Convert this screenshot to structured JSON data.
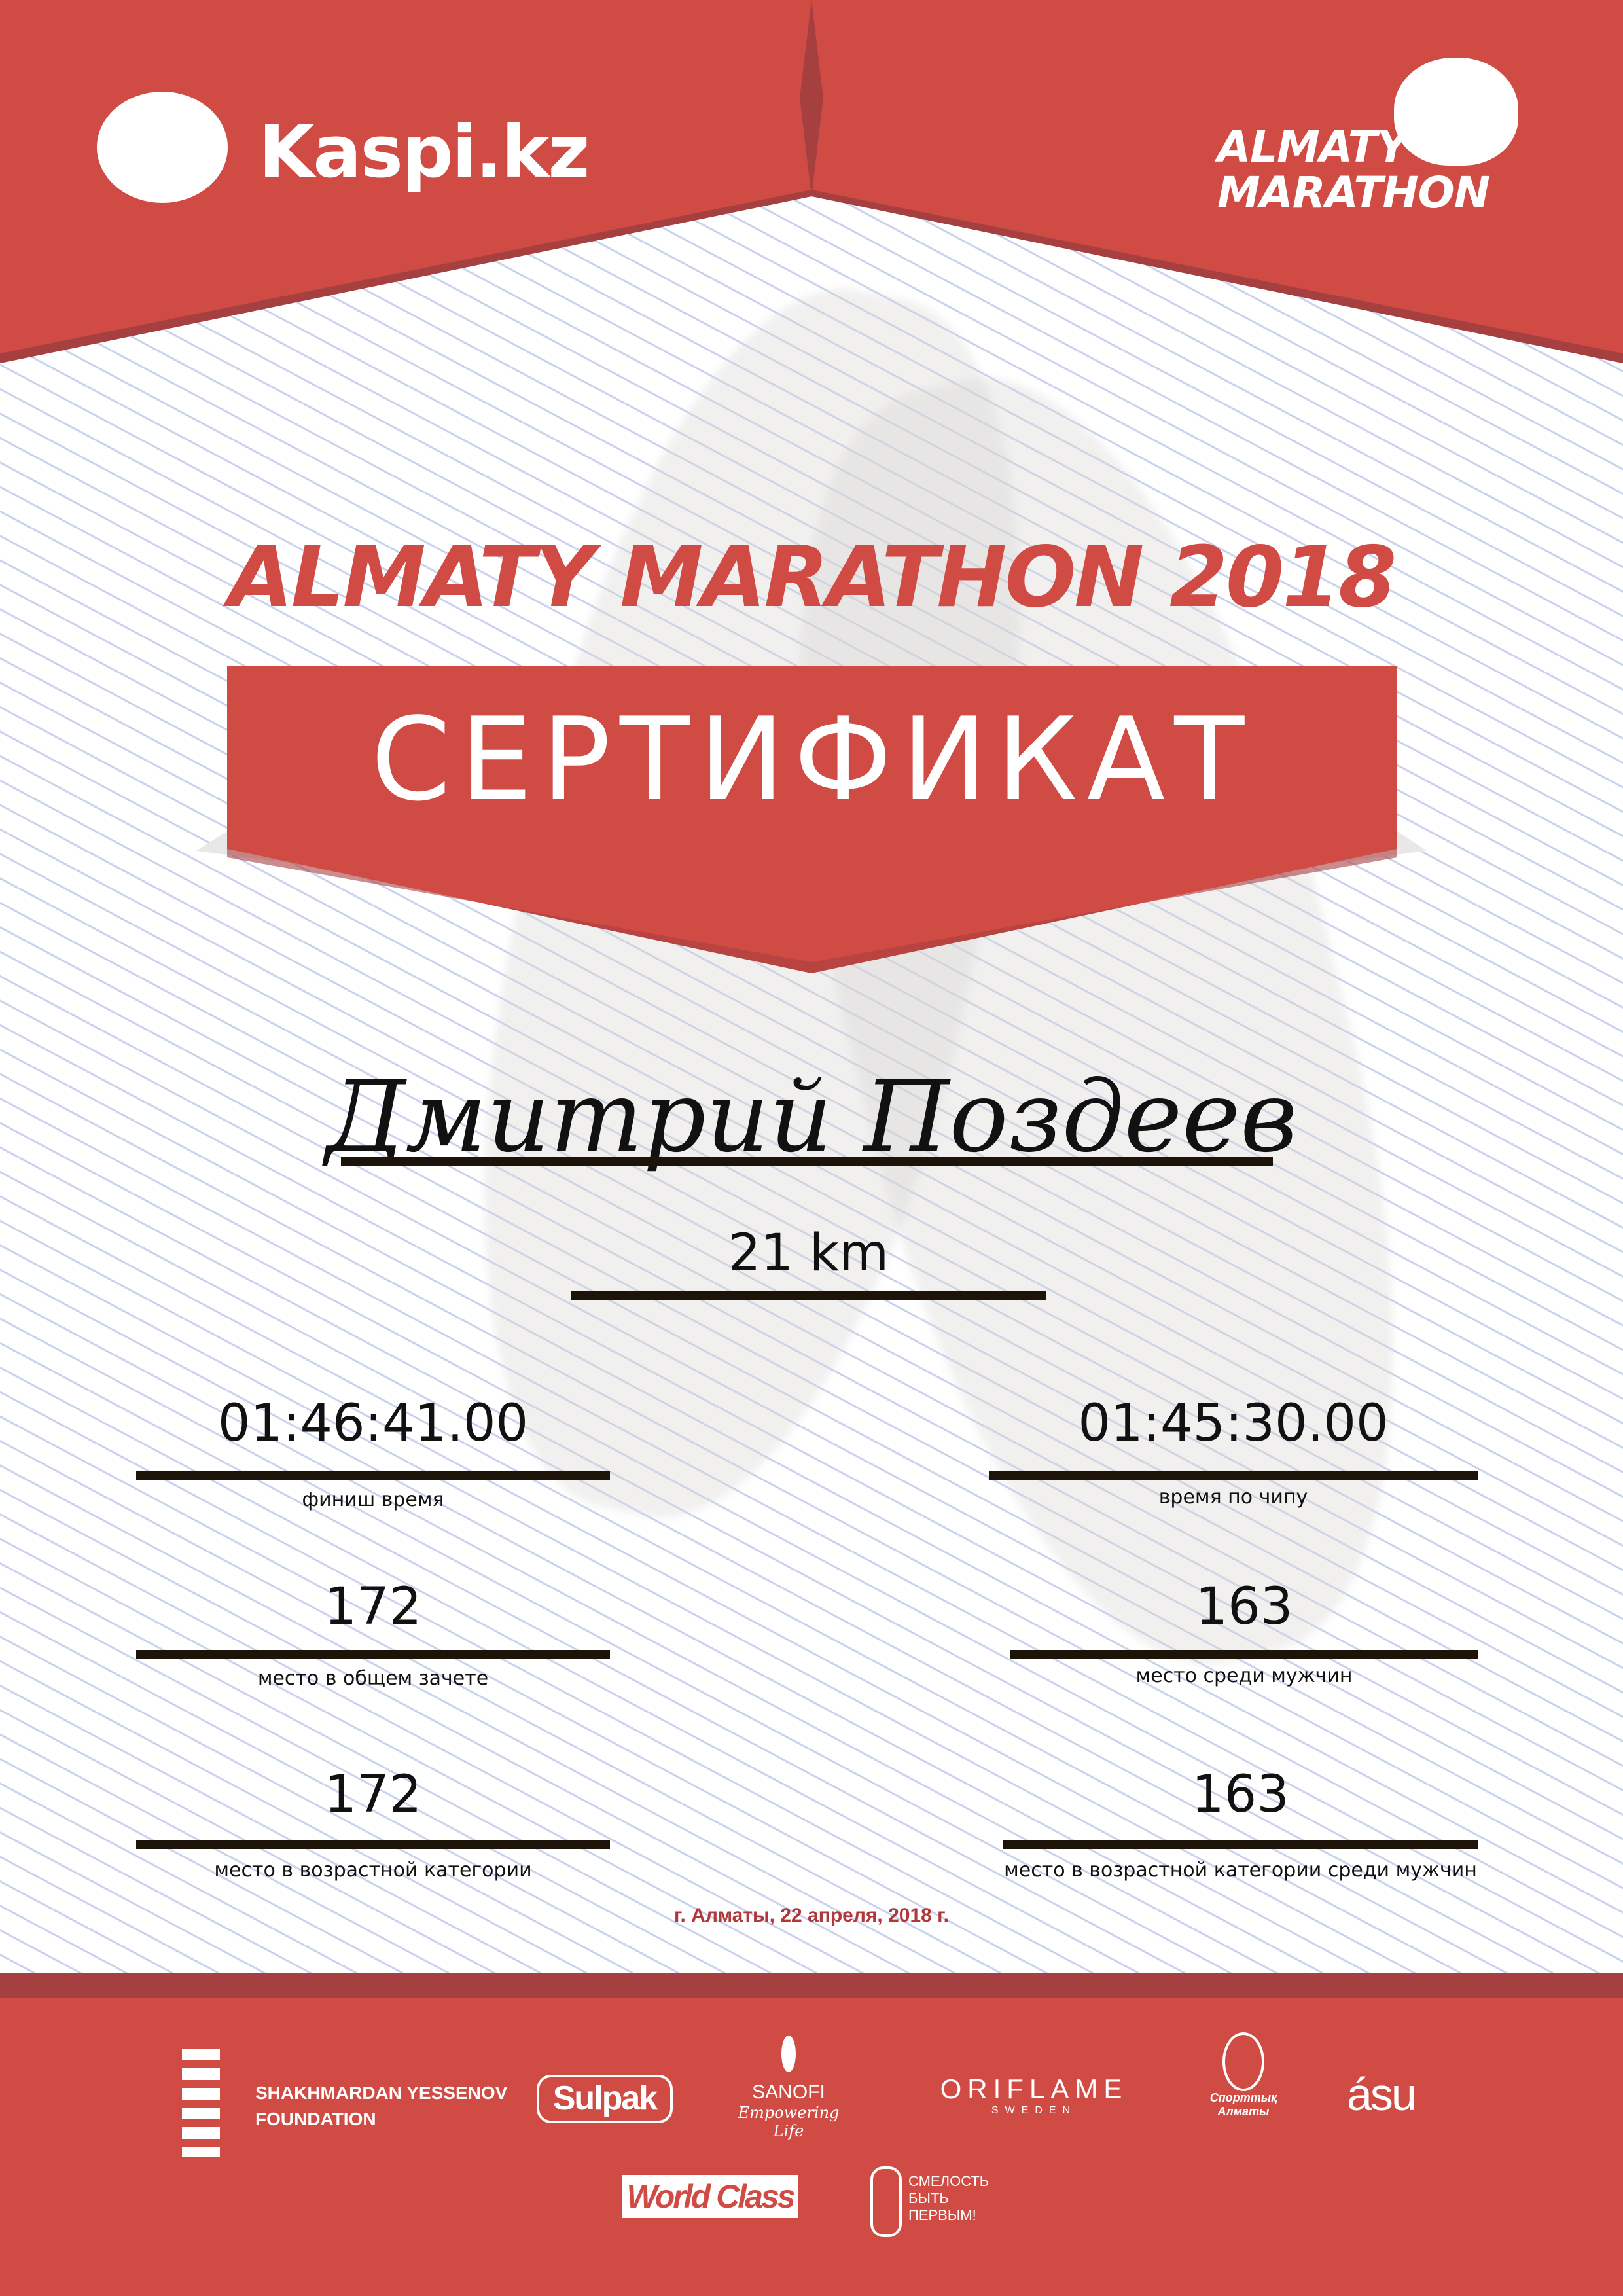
{
  "header": {
    "left_logo": "Kaspi.kz",
    "right_logo": [
      "ALMATY",
      "MARATHON"
    ]
  },
  "title": "ALMATY MARATHON 2018",
  "certificate_label": "СЕРТИФИКАТ",
  "participant": {
    "name": "Дмитрий Поздеев",
    "distance": "21 km"
  },
  "results": [
    {
      "value": "01:46:41.00",
      "label": "финиш время"
    },
    {
      "value": "01:45:30.00",
      "label": "время по чипу"
    },
    {
      "value": "172",
      "label": "место в общем зачете"
    },
    {
      "value": "163",
      "label": "место среди мужчин"
    },
    {
      "value": "172",
      "label": "место в возрастной категории"
    },
    {
      "value": "163",
      "label": "место в возрастной категории среди мужчин"
    }
  ],
  "date_line": "г. Алматы, 22 апреля, 2018 г.",
  "sponsors": {
    "yessenov": [
      "SHAKHMARDAN YESSENOV",
      "FOUNDATION"
    ],
    "sulpak": "Sulpak",
    "sanofi": [
      "SANOFI",
      "Empowering Life"
    ],
    "oriflame": [
      "ORIFLAME",
      "SWEDEN"
    ],
    "sport_almaty": [
      "Спорттық",
      "Алматы"
    ],
    "asu": "ásu",
    "world_class": "World Class",
    "fund": [
      "СМЕЛОСТЬ",
      "БЫТЬ",
      "ПЕРВЫМ!"
    ]
  },
  "colors": {
    "brand_red": "#d14b45",
    "dark_red": "#a63f40",
    "line_blue": "#c9d3ee"
  }
}
